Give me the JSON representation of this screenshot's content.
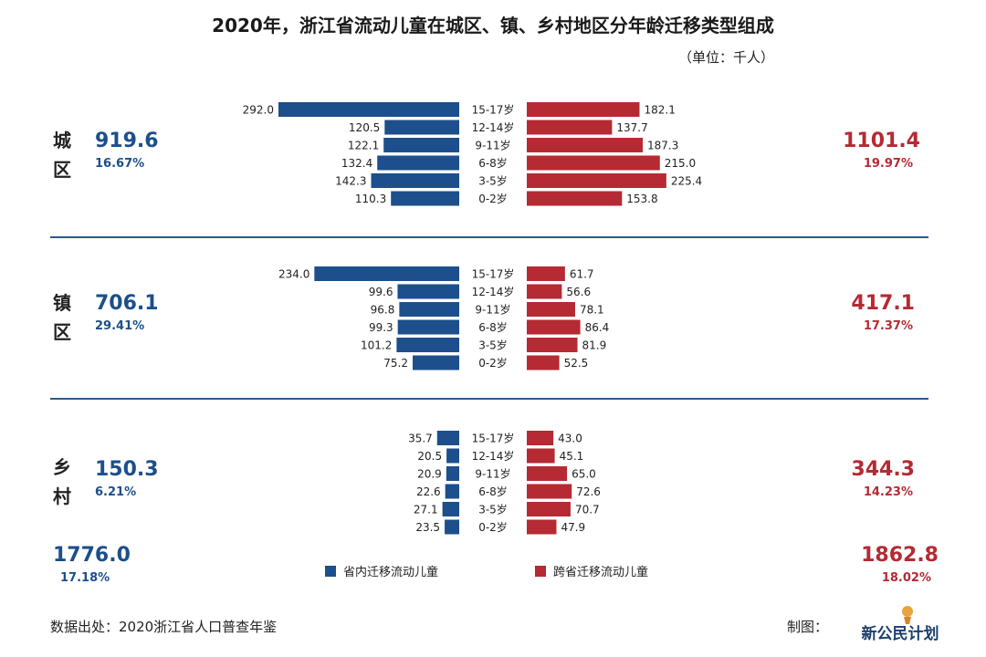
{
  "title": "2020年，浙江省流动儿童在城区、镇、乡村地区分年龄迁移类型组成",
  "unit": "（单位：千人）",
  "colors": {
    "within": "#1c4f8b",
    "cross": "#b52a33"
  },
  "chart_data": {
    "type": "bar",
    "orientation": "horizontal-population-pyramid",
    "age_groups": [
      "15-17岁",
      "12-14岁",
      "9-11岁",
      "6-8岁",
      "3-5岁",
      "0-2岁"
    ],
    "legend": {
      "within": "省内迁移流动儿童",
      "cross": "跨省迁移流动儿童",
      "placement": "bottom-center"
    },
    "regions": [
      {
        "name_line1": "城",
        "name_line2": "区",
        "within_total": "919.6",
        "within_pct": "16.67%",
        "cross_total": "1101.4",
        "cross_pct": "19.97%",
        "within": [
          292.0,
          120.5,
          122.1,
          132.4,
          142.3,
          110.3
        ],
        "cross": [
          182.1,
          137.7,
          187.3,
          215.0,
          225.4,
          153.8
        ]
      },
      {
        "name_line1": "镇",
        "name_line2": "区",
        "within_total": "706.1",
        "within_pct": "29.41%",
        "cross_total": "417.1",
        "cross_pct": "17.37%",
        "within": [
          234.0,
          99.6,
          96.8,
          99.3,
          101.2,
          75.2
        ],
        "cross": [
          61.7,
          56.6,
          78.1,
          86.4,
          81.9,
          52.5
        ]
      },
      {
        "name_line1": "乡",
        "name_line2": "村",
        "within_total": "150.3",
        "within_pct": "6.21%",
        "cross_total": "344.3",
        "cross_pct": "14.23%",
        "within": [
          35.7,
          20.5,
          20.9,
          22.6,
          27.1,
          23.5
        ],
        "cross": [
          43.0,
          45.1,
          65.0,
          72.6,
          70.7,
          47.9
        ]
      }
    ],
    "grand_total": {
      "within_total": "1776.0",
      "within_pct": "17.18%",
      "cross_total": "1862.8",
      "cross_pct": "18.02%"
    }
  },
  "footer": {
    "source": "数据出处：2020浙江省人口普查年鉴",
    "maker": "制图：",
    "logo_text": "新公民计划"
  }
}
